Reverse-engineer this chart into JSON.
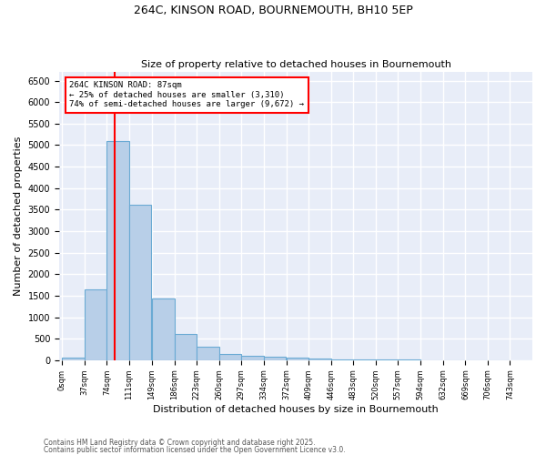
{
  "title1": "264C, KINSON ROAD, BOURNEMOUTH, BH10 5EP",
  "title2": "Size of property relative to detached houses in Bournemouth",
  "xlabel": "Distribution of detached houses by size in Bournemouth",
  "ylabel": "Number of detached properties",
  "bar_values": [
    65,
    1640,
    5100,
    3620,
    1430,
    620,
    310,
    150,
    110,
    80,
    60,
    40,
    20,
    15,
    10,
    8,
    5,
    4,
    3,
    2
  ],
  "bin_starts": [
    0,
    37,
    74,
    111,
    149,
    186,
    223,
    260,
    297,
    334,
    372,
    409,
    446,
    483,
    520,
    557,
    594,
    632,
    669,
    706
  ],
  "bin_width": 37,
  "bar_labels": [
    "0sqm",
    "37sqm",
    "74sqm",
    "111sqm",
    "149sqm",
    "186sqm",
    "223sqm",
    "260sqm",
    "297sqm",
    "334sqm",
    "372sqm",
    "409sqm",
    "446sqm",
    "483sqm",
    "520sqm",
    "557sqm",
    "594sqm",
    "632sqm",
    "669sqm",
    "706sqm",
    "743sqm"
  ],
  "bar_color": "#b8cfe8",
  "bar_edge_color": "#6aaad4",
  "vline_x": 87,
  "vline_color": "red",
  "annotation_text": "264C KINSON ROAD: 87sqm\n← 25% of detached houses are smaller (3,310)\n74% of semi-detached houses are larger (9,672) →",
  "annotation_box_color": "white",
  "annotation_box_edge": "red",
  "ylim": [
    0,
    6700
  ],
  "yticks": [
    0,
    500,
    1000,
    1500,
    2000,
    2500,
    3000,
    3500,
    4000,
    4500,
    5000,
    5500,
    6000,
    6500
  ],
  "bg_color": "#e8edf8",
  "footer1": "Contains HM Land Registry data © Crown copyright and database right 2025.",
  "footer2": "Contains public sector information licensed under the Open Government Licence v3.0."
}
